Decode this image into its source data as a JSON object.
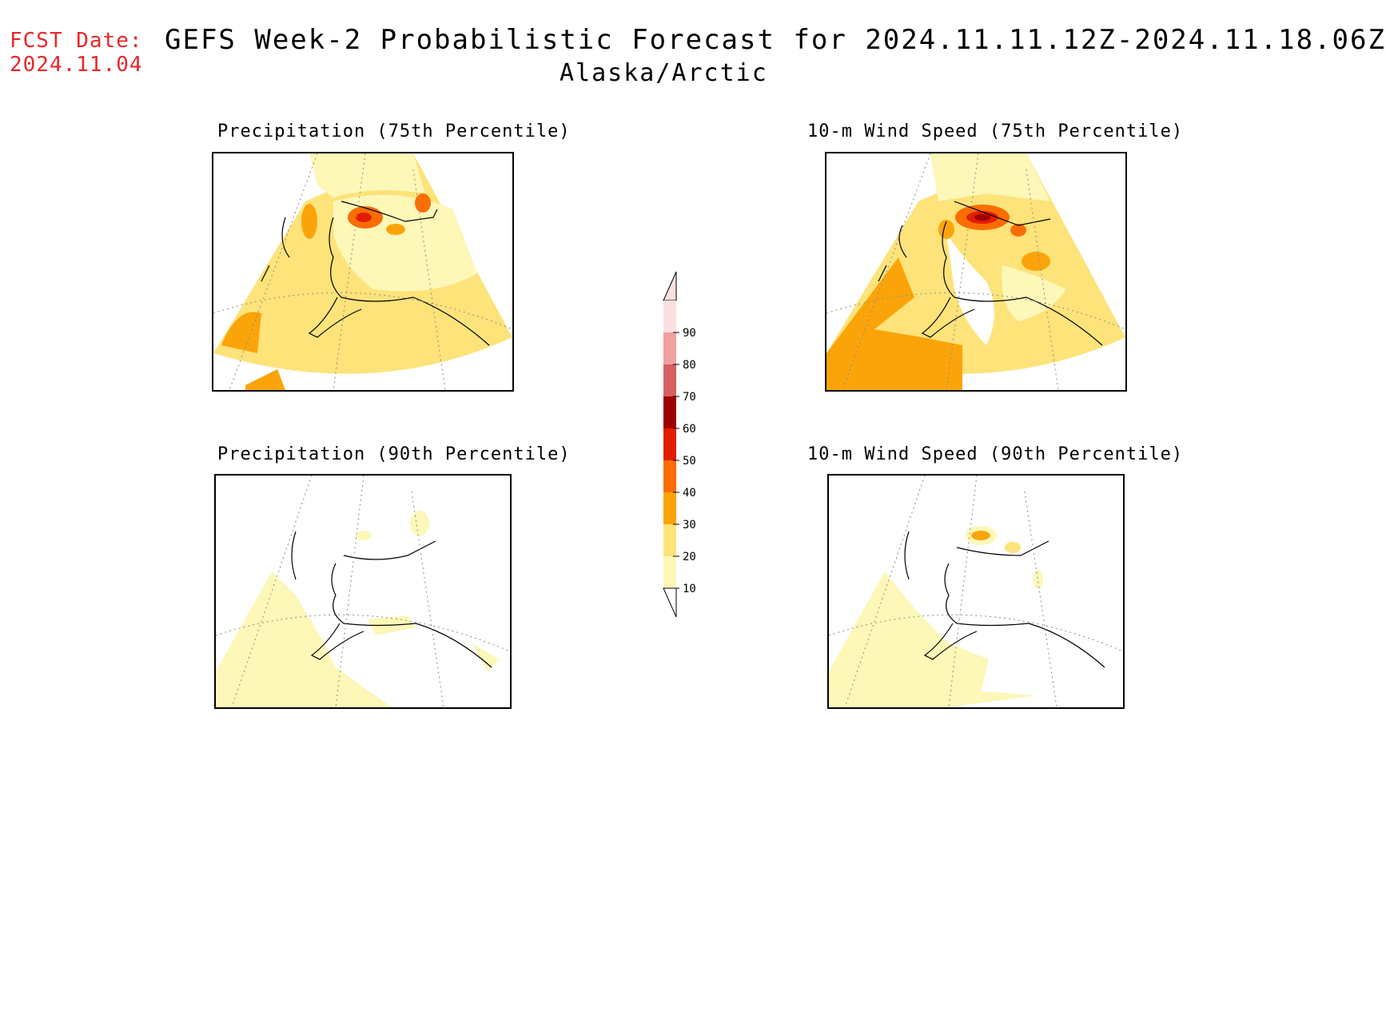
{
  "header": {
    "fcst_label": "FCST Date:",
    "fcst_date": "2024.11.04",
    "title": "GEFS Week-2 Probabilistic Forecast for 2024.11.11.12Z-2024.11.18.06Z",
    "region": "Alaska/Arctic"
  },
  "panels": [
    {
      "title": "Precipitation (75th Percentile)"
    },
    {
      "title": "10-m Wind Speed (75th Percentile)"
    },
    {
      "title": "Precipitation (90th Percentile)"
    },
    {
      "title": "10-m Wind Speed (90th Percentile)"
    }
  ],
  "colorbar": {
    "levels": [
      "10",
      "20",
      "30",
      "40",
      "50",
      "60",
      "70",
      "80",
      "90"
    ],
    "colors": [
      "#fdf7b8",
      "#fde37a",
      "#fba40a",
      "#fb6d02",
      "#e21d00",
      "#9f0000",
      "#d65f60",
      "#f1a0a0",
      "#fce0e0"
    ]
  }
}
